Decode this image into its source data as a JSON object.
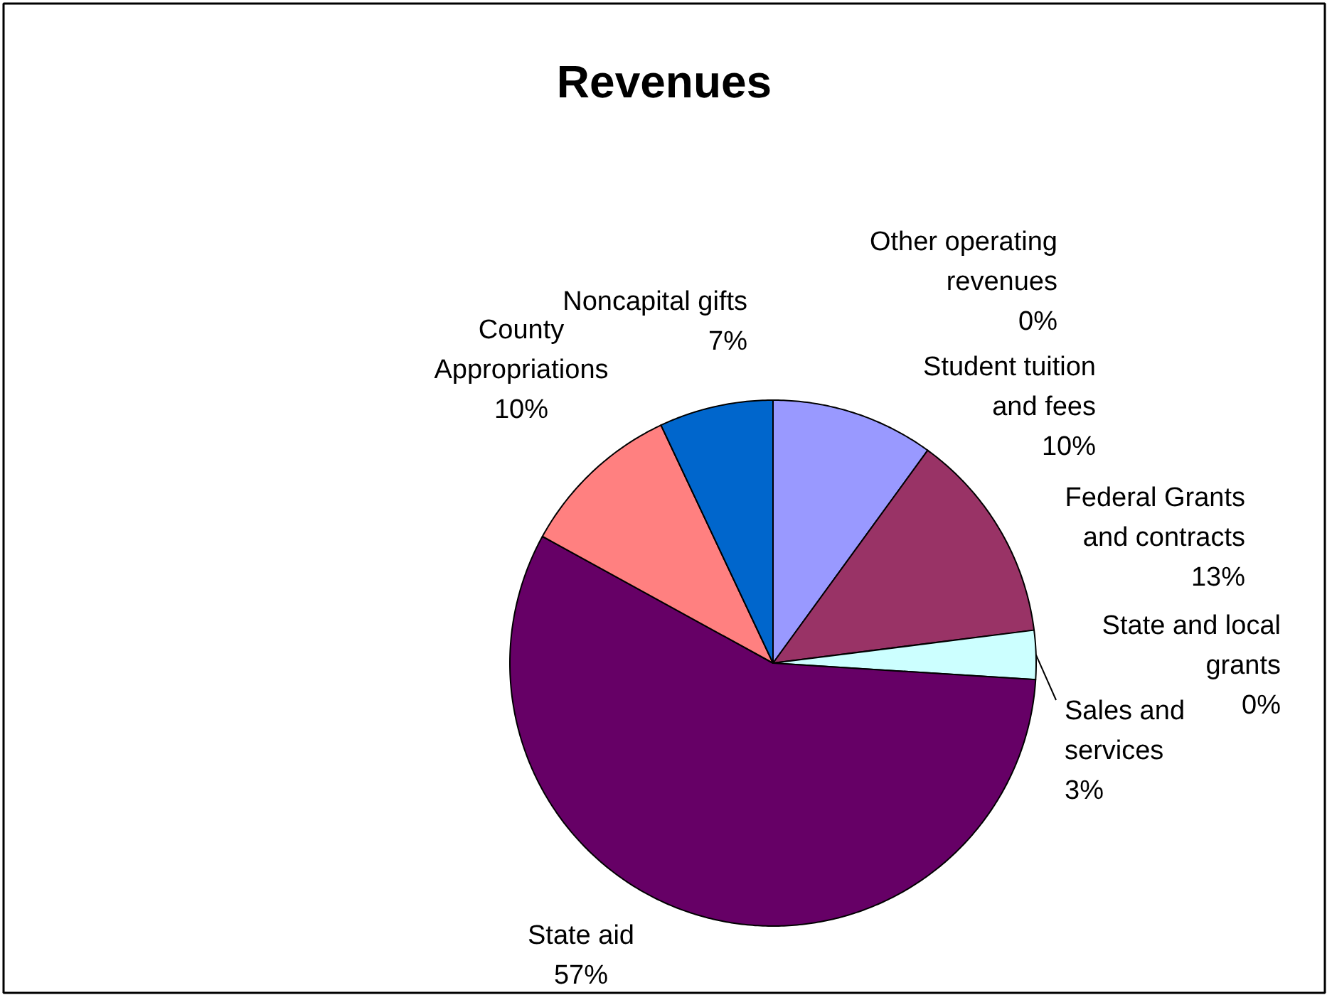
{
  "chart_data": {
    "type": "pie",
    "title": "Revenues",
    "categories": [
      "Other operating revenues",
      "Student tuition and fees",
      "Federal Grants and contracts",
      "State and local grants",
      "Sales and services",
      "State aid",
      "County Appropriations",
      "Noncapital gifts"
    ],
    "values": [
      0,
      10,
      13,
      0,
      3,
      57,
      10,
      7
    ],
    "value_labels": [
      "0%",
      "10%",
      "13%",
      "0%",
      "3%",
      "57%",
      "10%",
      "7%"
    ],
    "colors": [
      "#000080",
      "#9999ff",
      "#993366",
      "#ffffcc",
      "#ccffff",
      "#660066",
      "#ff8080",
      "#0066cc"
    ],
    "legend": false
  }
}
